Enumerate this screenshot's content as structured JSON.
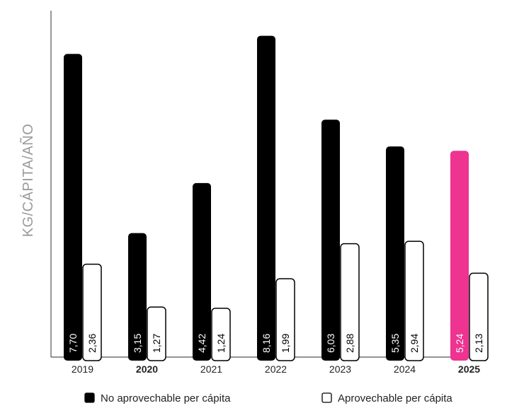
{
  "chart_data": {
    "type": "bar",
    "ylabel": "KG/CÁPITA/AÑO",
    "xlabel": "",
    "ylim": [
      0,
      8.8
    ],
    "grid": false,
    "legend_position": "bottom",
    "categories": [
      "2019",
      "2020",
      "2021",
      "2022",
      "2023",
      "2024",
      "2025"
    ],
    "bold_categories": [
      "2020",
      "2025"
    ],
    "highlight_category": "2025",
    "highlight_color": "#ee3390",
    "series": [
      {
        "name": "No aprovechable per cápita",
        "color": "#000000",
        "values": [
          7.7,
          3.15,
          4.42,
          8.16,
          6.03,
          5.35,
          5.24
        ],
        "labels": [
          "7,70",
          "3,15",
          "4,42",
          "8,16",
          "6,03",
          "5,35",
          "5,24"
        ]
      },
      {
        "name": "Aprovechable per cápita",
        "color": "#ffffff",
        "values": [
          2.36,
          1.27,
          1.24,
          1.99,
          2.88,
          2.94,
          2.13
        ],
        "labels": [
          "2,36",
          "1,27",
          "1,24",
          "1,99",
          "2,88",
          "2,94",
          "2,13"
        ]
      }
    ]
  }
}
